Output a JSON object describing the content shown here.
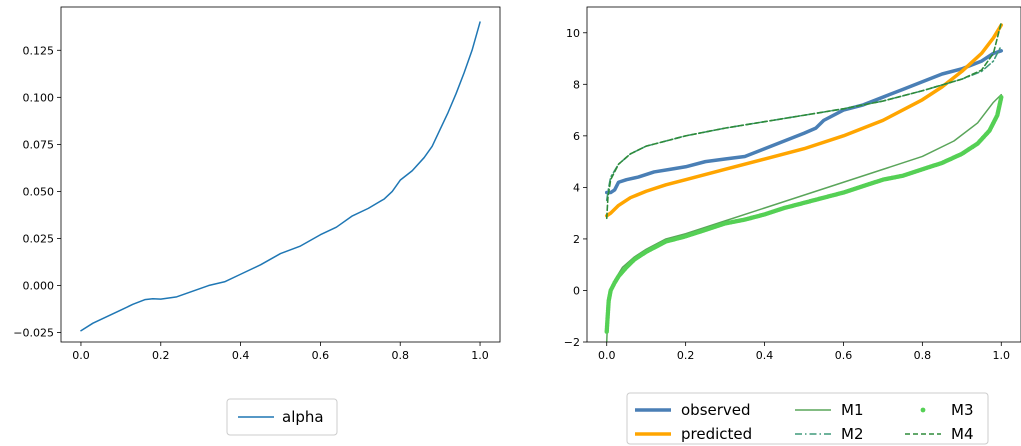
{
  "chart_data": [
    {
      "type": "line",
      "title": "",
      "xlabel": "",
      "ylabel": "",
      "xlim": [
        -0.05,
        1.05
      ],
      "ylim": [
        -0.03,
        0.148
      ],
      "xticks": [
        0.0,
        0.2,
        0.4,
        0.6,
        0.8,
        1.0
      ],
      "xtick_labels": [
        "0.0",
        "0.2",
        "0.4",
        "0.6",
        "0.8",
        "1.0"
      ],
      "yticks": [
        -0.025,
        0.0,
        0.025,
        0.05,
        0.075,
        0.1,
        0.125
      ],
      "ytick_labels": [
        "−0.025",
        "0.000",
        "0.025",
        "0.050",
        "0.075",
        "0.100",
        "0.125"
      ],
      "grid": false,
      "legend_position": "below",
      "series": [
        {
          "name": "alpha",
          "color": "#1f77b4",
          "style": "solid",
          "points": [
            [
              0.0,
              -0.024
            ],
            [
              0.03,
              -0.02
            ],
            [
              0.06,
              -0.017
            ],
            [
              0.1,
              -0.013
            ],
            [
              0.13,
              -0.01
            ],
            [
              0.16,
              -0.0075
            ],
            [
              0.18,
              -0.007
            ],
            [
              0.2,
              -0.0072
            ],
            [
              0.24,
              -0.006
            ],
            [
              0.28,
              -0.003
            ],
            [
              0.32,
              0.0
            ],
            [
              0.36,
              0.002
            ],
            [
              0.4,
              0.006
            ],
            [
              0.45,
              0.011
            ],
            [
              0.5,
              0.017
            ],
            [
              0.55,
              0.021
            ],
            [
              0.6,
              0.027
            ],
            [
              0.64,
              0.031
            ],
            [
              0.68,
              0.037
            ],
            [
              0.72,
              0.041
            ],
            [
              0.76,
              0.046
            ],
            [
              0.78,
              0.05
            ],
            [
              0.8,
              0.056
            ],
            [
              0.83,
              0.061
            ],
            [
              0.86,
              0.068
            ],
            [
              0.88,
              0.074
            ],
            [
              0.9,
              0.083
            ],
            [
              0.92,
              0.092
            ],
            [
              0.94,
              0.102
            ],
            [
              0.96,
              0.113
            ],
            [
              0.98,
              0.125
            ],
            [
              1.0,
              0.14
            ]
          ]
        }
      ]
    },
    {
      "type": "line",
      "title": "",
      "xlabel": "",
      "ylabel": "",
      "xlim": [
        -0.05,
        1.05
      ],
      "ylim": [
        -2,
        11
      ],
      "xticks": [
        0.0,
        0.2,
        0.4,
        0.6,
        0.8,
        1.0
      ],
      "xtick_labels": [
        "0.0",
        "0.2",
        "0.4",
        "0.6",
        "0.8",
        "1.0"
      ],
      "yticks": [
        -2,
        0,
        2,
        4,
        6,
        8,
        10
      ],
      "ytick_labels": [
        "−2",
        "0",
        "2",
        "4",
        "6",
        "8",
        "10"
      ],
      "grid": false,
      "legend_position": "below",
      "series": [
        {
          "name": "observed",
          "color": "#4a7fb5",
          "style": "thick",
          "points": [
            [
              0.0,
              3.8
            ],
            [
              0.01,
              3.8
            ],
            [
              0.02,
              3.9
            ],
            [
              0.03,
              4.2
            ],
            [
              0.05,
              4.3
            ],
            [
              0.08,
              4.4
            ],
            [
              0.12,
              4.6
            ],
            [
              0.16,
              4.7
            ],
            [
              0.2,
              4.8
            ],
            [
              0.25,
              5.0
            ],
            [
              0.3,
              5.1
            ],
            [
              0.35,
              5.2
            ],
            [
              0.4,
              5.5
            ],
            [
              0.45,
              5.8
            ],
            [
              0.5,
              6.1
            ],
            [
              0.53,
              6.3
            ],
            [
              0.55,
              6.6
            ],
            [
              0.6,
              7.0
            ],
            [
              0.65,
              7.2
            ],
            [
              0.7,
              7.5
            ],
            [
              0.75,
              7.8
            ],
            [
              0.8,
              8.1
            ],
            [
              0.85,
              8.4
            ],
            [
              0.9,
              8.6
            ],
            [
              0.95,
              8.9
            ],
            [
              0.98,
              9.2
            ],
            [
              1.0,
              9.3
            ]
          ]
        },
        {
          "name": "predicted",
          "color": "#ffa500",
          "style": "thick",
          "points": [
            [
              0.0,
              2.9
            ],
            [
              0.01,
              3.0
            ],
            [
              0.03,
              3.3
            ],
            [
              0.06,
              3.6
            ],
            [
              0.1,
              3.85
            ],
            [
              0.15,
              4.1
            ],
            [
              0.2,
              4.3
            ],
            [
              0.3,
              4.7
            ],
            [
              0.4,
              5.1
            ],
            [
              0.5,
              5.5
            ],
            [
              0.6,
              6.0
            ],
            [
              0.7,
              6.6
            ],
            [
              0.8,
              7.4
            ],
            [
              0.85,
              7.9
            ],
            [
              0.9,
              8.5
            ],
            [
              0.95,
              9.2
            ],
            [
              0.98,
              9.8
            ],
            [
              1.0,
              10.3
            ]
          ]
        },
        {
          "name": "M1",
          "color": "#5aa55a",
          "style": "solid",
          "points": [
            [
              0.0,
              -2.0
            ],
            [
              0.003,
              -0.8
            ],
            [
              0.01,
              0.0
            ],
            [
              0.02,
              0.4
            ],
            [
              0.04,
              0.9
            ],
            [
              0.07,
              1.3
            ],
            [
              0.1,
              1.6
            ],
            [
              0.15,
              2.0
            ],
            [
              0.2,
              2.2
            ],
            [
              0.3,
              2.7
            ],
            [
              0.4,
              3.2
            ],
            [
              0.5,
              3.7
            ],
            [
              0.6,
              4.2
            ],
            [
              0.7,
              4.7
            ],
            [
              0.8,
              5.2
            ],
            [
              0.88,
              5.8
            ],
            [
              0.94,
              6.5
            ],
            [
              0.98,
              7.3
            ],
            [
              1.0,
              7.6
            ]
          ]
        },
        {
          "name": "M2",
          "color": "#3f9a7a",
          "style": "dashdot",
          "points": [
            [
              0.0,
              3.5
            ],
            [
              0.005,
              4.0
            ],
            [
              0.01,
              4.4
            ],
            [
              0.03,
              4.9
            ],
            [
              0.06,
              5.3
            ],
            [
              0.1,
              5.6
            ],
            [
              0.2,
              6.0
            ],
            [
              0.3,
              6.3
            ],
            [
              0.4,
              6.55
            ],
            [
              0.5,
              6.8
            ],
            [
              0.6,
              7.05
            ],
            [
              0.7,
              7.35
            ],
            [
              0.8,
              7.75
            ],
            [
              0.9,
              8.2
            ],
            [
              0.95,
              8.5
            ],
            [
              0.98,
              8.9
            ],
            [
              1.0,
              9.5
            ]
          ]
        },
        {
          "name": "M3",
          "color": "#55d055",
          "style": "dots",
          "points": [
            [
              0.0,
              -1.6
            ],
            [
              0.002,
              -1.1
            ],
            [
              0.005,
              -0.4
            ],
            [
              0.01,
              0.0
            ],
            [
              0.02,
              0.3
            ],
            [
              0.03,
              0.55
            ],
            [
              0.05,
              0.9
            ],
            [
              0.07,
              1.2
            ],
            [
              0.1,
              1.5
            ],
            [
              0.15,
              1.9
            ],
            [
              0.2,
              2.1
            ],
            [
              0.25,
              2.35
            ],
            [
              0.3,
              2.6
            ],
            [
              0.35,
              2.75
            ],
            [
              0.4,
              2.95
            ],
            [
              0.45,
              3.2
            ],
            [
              0.5,
              3.4
            ],
            [
              0.55,
              3.6
            ],
            [
              0.6,
              3.8
            ],
            [
              0.65,
              4.05
            ],
            [
              0.7,
              4.3
            ],
            [
              0.75,
              4.45
            ],
            [
              0.8,
              4.7
            ],
            [
              0.85,
              4.95
            ],
            [
              0.9,
              5.3
            ],
            [
              0.94,
              5.7
            ],
            [
              0.97,
              6.2
            ],
            [
              0.99,
              6.8
            ],
            [
              1.0,
              7.5
            ]
          ]
        },
        {
          "name": "M4",
          "color": "#2e8b3a",
          "style": "dashed",
          "points": [
            [
              0.0,
              2.8
            ],
            [
              0.003,
              3.6
            ],
            [
              0.01,
              4.3
            ],
            [
              0.03,
              4.9
            ],
            [
              0.06,
              5.3
            ],
            [
              0.1,
              5.6
            ],
            [
              0.2,
              6.0
            ],
            [
              0.3,
              6.3
            ],
            [
              0.4,
              6.55
            ],
            [
              0.5,
              6.8
            ],
            [
              0.6,
              7.05
            ],
            [
              0.7,
              7.35
            ],
            [
              0.8,
              7.75
            ],
            [
              0.9,
              8.2
            ],
            [
              0.95,
              8.55
            ],
            [
              0.98,
              9.2
            ],
            [
              1.0,
              10.4
            ]
          ]
        }
      ]
    }
  ]
}
